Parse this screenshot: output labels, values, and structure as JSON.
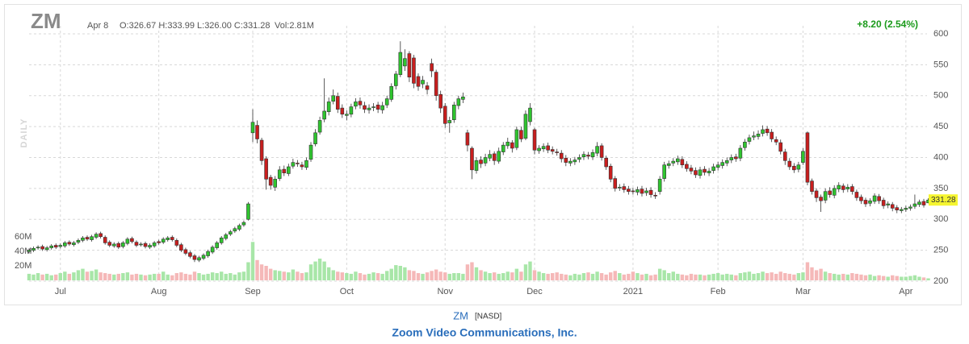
{
  "chart_data": {
    "type": "candlestick",
    "title": "ZM",
    "date": "Apr 8",
    "ohlc_text": "O:326.67 H:333.99 L:326.00 C:331.28",
    "volume_text": "Vol:2.81M",
    "change_text": "+8.20 (2.54%)",
    "period_label": "DAILY",
    "up_color": "#2fc42f",
    "down_color": "#c81e1e",
    "volume_up_color": "#a8e6a8",
    "volume_down_color": "#f5b8b8",
    "change_color": "#1a9a1a",
    "last_price_color": "#f5f530",
    "grid": true,
    "categories": [
      null,
      null,
      null,
      null,
      null,
      null,
      null,
      "Jul",
      null,
      null,
      null,
      null,
      null,
      null,
      null,
      null,
      null,
      null,
      null,
      null,
      null,
      null,
      null,
      null,
      null,
      null,
      null,
      null,
      null,
      "Aug",
      null,
      null,
      null,
      null,
      null,
      null,
      null,
      null,
      null,
      null,
      null,
      null,
      null,
      null,
      null,
      null,
      null,
      null,
      null,
      null,
      "Sep",
      null,
      null,
      null,
      null,
      null,
      null,
      null,
      null,
      null,
      null,
      null,
      null,
      null,
      null,
      null,
      null,
      null,
      null,
      null,
      null,
      "Oct",
      null,
      null,
      null,
      null,
      null,
      null,
      null,
      null,
      null,
      null,
      null,
      null,
      null,
      null,
      null,
      null,
      null,
      null,
      null,
      null,
      null,
      "Nov",
      null,
      null,
      null,
      null,
      null,
      null,
      null,
      null,
      null,
      null,
      null,
      null,
      null,
      null,
      null,
      null,
      null,
      null,
      null,
      "Dec",
      null,
      null,
      null,
      null,
      null,
      null,
      null,
      null,
      null,
      null,
      null,
      null,
      null,
      null,
      null,
      null,
      null,
      null,
      null,
      null,
      null,
      "2021",
      null,
      null,
      null,
      null,
      null,
      null,
      null,
      null,
      null,
      null,
      null,
      null,
      null,
      null,
      null,
      null,
      null,
      null,
      "Feb",
      null,
      null,
      null,
      null,
      null,
      null,
      null,
      null,
      null,
      null,
      null,
      null,
      null,
      null,
      null,
      null,
      null,
      null,
      "Mar",
      null,
      null,
      null,
      null,
      null,
      null,
      null,
      null,
      null,
      null,
      null,
      null,
      null,
      null,
      null,
      null,
      null,
      null,
      null,
      null,
      null,
      null,
      "Apr",
      null,
      null,
      null,
      null,
      null
    ],
    "open": [
      248,
      250,
      254,
      256,
      251,
      254,
      258,
      256,
      257,
      263,
      259,
      263,
      266,
      271,
      267,
      271,
      277,
      271,
      263,
      257,
      261,
      256,
      261,
      269,
      263,
      259,
      261,
      255,
      257,
      264,
      263,
      267,
      271,
      266,
      259,
      251,
      246,
      241,
      234,
      237,
      241,
      247,
      254,
      262,
      269,
      276,
      281,
      284,
      291,
      300,
      440,
      452,
      428,
      398,
      368,
      352,
      366,
      381,
      374,
      386,
      391,
      388,
      384,
      397,
      422,
      441,
      462,
      474,
      491,
      499,
      480,
      468,
      470,
      483,
      491,
      484,
      477,
      481,
      485,
      477,
      485,
      494,
      516,
      534,
      548,
      568,
      561,
      531,
      519,
      516,
      552,
      538,
      502,
      483,
      456,
      461,
      484,
      494,
      440,
      415,
      379,
      396,
      391,
      399,
      406,
      394,
      409,
      419,
      424,
      416,
      444,
      431,
      458,
      445,
      411,
      414,
      419,
      413,
      409,
      407,
      399,
      391,
      393,
      397,
      401,
      404,
      401,
      407,
      419,
      399,
      386,
      366,
      351,
      353,
      349,
      346,
      344,
      349,
      343,
      347,
      339,
      345,
      366,
      387,
      391,
      393,
      397,
      389,
      383,
      379,
      371,
      381,
      375,
      379,
      384,
      387,
      391,
      396,
      401,
      399,
      416,
      426,
      433,
      434,
      439,
      446,
      441,
      429,
      424,
      409,
      394,
      386,
      381,
      392,
      440,
      362,
      346,
      336,
      331,
      346,
      339,
      349,
      354,
      349,
      353,
      344,
      336,
      331,
      326,
      329,
      337,
      331,
      323,
      324,
      319,
      314,
      316,
      318,
      321,
      324,
      329,
      326.67
    ],
    "high": [
      253,
      256,
      258,
      259,
      257,
      260,
      261,
      261,
      265,
      266,
      265,
      269,
      273,
      274,
      275,
      279,
      280,
      274,
      266,
      263,
      264,
      265,
      271,
      272,
      266,
      263,
      264,
      261,
      265,
      267,
      271,
      273,
      274,
      269,
      262,
      254,
      249,
      244,
      241,
      245,
      251,
      258,
      265,
      273,
      278,
      283,
      288,
      293,
      298,
      328,
      478,
      460,
      432,
      402,
      372,
      370,
      386,
      387,
      390,
      398,
      396,
      393,
      400,
      425,
      446,
      466,
      528,
      497,
      510,
      505,
      486,
      476,
      487,
      496,
      497,
      490,
      486,
      488,
      490,
      490,
      500,
      520,
      540,
      588,
      575,
      572,
      566,
      536,
      532,
      522,
      560,
      542,
      508,
      488,
      466,
      490,
      500,
      505,
      445,
      418,
      400,
      402,
      406,
      412,
      410,
      416,
      425,
      432,
      428,
      450,
      450,
      476,
      488,
      448,
      420,
      423,
      424,
      418,
      414,
      412,
      404,
      399,
      401,
      405,
      410,
      409,
      413,
      425,
      423,
      403,
      390,
      370,
      357,
      358,
      354,
      351,
      353,
      354,
      351,
      352,
      344,
      370,
      393,
      395,
      399,
      403,
      402,
      394,
      388,
      384,
      385,
      386,
      383,
      390,
      393,
      397,
      400,
      405,
      406,
      420,
      430,
      437,
      442,
      444,
      452,
      451,
      446,
      434,
      429,
      414,
      399,
      391,
      393,
      415,
      442,
      366,
      350,
      340,
      350,
      352,
      355,
      360,
      358,
      357,
      357,
      348,
      340,
      335,
      334,
      342,
      341,
      335,
      329,
      328,
      323,
      320,
      322,
      324,
      340,
      332,
      333,
      333.99
    ],
    "low": [
      245,
      247,
      251,
      249,
      248,
      251,
      252,
      253,
      254,
      257,
      256,
      260,
      263,
      265,
      264,
      268,
      269,
      259,
      255,
      254,
      252,
      253,
      258,
      261,
      255,
      256,
      253,
      252,
      254,
      259,
      260,
      264,
      264,
      255,
      247,
      242,
      237,
      231,
      231,
      234,
      238,
      244,
      251,
      259,
      266,
      273,
      278,
      281,
      288,
      298,
      425,
      423,
      388,
      348,
      348,
      346,
      362,
      370,
      370,
      382,
      385,
      380,
      380,
      393,
      418,
      437,
      457,
      468,
      486,
      472,
      464,
      460,
      465,
      478,
      479,
      472,
      471,
      475,
      472,
      471,
      480,
      490,
      510,
      530,
      540,
      522,
      512,
      508,
      512,
      502,
      530,
      492,
      472,
      448,
      440,
      456,
      478,
      488,
      410,
      365,
      374,
      383,
      386,
      394,
      388,
      390,
      404,
      414,
      408,
      412,
      425,
      428,
      452,
      405,
      406,
      409,
      407,
      405,
      403,
      392,
      386,
      386,
      388,
      392,
      396,
      397,
      396,
      402,
      395,
      380,
      360,
      345,
      346,
      343,
      340,
      340,
      339,
      337,
      338,
      335,
      333,
      340,
      361,
      382,
      386,
      388,
      383,
      377,
      373,
      367,
      366,
      371,
      370,
      374,
      379,
      382,
      386,
      391,
      393,
      394,
      411,
      421,
      428,
      429,
      434,
      435,
      425,
      420,
      405,
      388,
      380,
      375,
      376,
      388,
      355,
      340,
      328,
      312,
      326,
      335,
      334,
      344,
      343,
      344,
      340,
      330,
      325,
      320,
      321,
      325,
      325,
      317,
      318,
      313,
      310,
      310,
      312,
      314,
      317,
      320,
      319,
      326.0
    ],
    "close": [
      250,
      253,
      255,
      252,
      254,
      257,
      255,
      258,
      262,
      260,
      262,
      266,
      270,
      268,
      272,
      276,
      272,
      262,
      258,
      260,
      255,
      262,
      268,
      264,
      258,
      260,
      256,
      258,
      262,
      262,
      268,
      270,
      267,
      258,
      250,
      245,
      240,
      235,
      238,
      242,
      248,
      255,
      262,
      270,
      275,
      280,
      285,
      290,
      295,
      325,
      457,
      430,
      395,
      365,
      355,
      365,
      380,
      375,
      385,
      392,
      390,
      385,
      395,
      420,
      440,
      460,
      475,
      490,
      500,
      478,
      470,
      470,
      482,
      490,
      485,
      478,
      480,
      482,
      478,
      484,
      495,
      515,
      535,
      570,
      560,
      530,
      520,
      515,
      525,
      510,
      540,
      500,
      480,
      455,
      460,
      485,
      495,
      498,
      420,
      380,
      395,
      390,
      400,
      405,
      395,
      410,
      420,
      425,
      415,
      445,
      430,
      470,
      480,
      412,
      415,
      418,
      412,
      410,
      408,
      398,
      392,
      394,
      396,
      400,
      405,
      402,
      408,
      418,
      400,
      385,
      365,
      350,
      352,
      348,
      345,
      345,
      348,
      342,
      346,
      340,
      338,
      365,
      388,
      390,
      394,
      398,
      388,
      382,
      378,
      372,
      380,
      376,
      378,
      385,
      388,
      392,
      395,
      400,
      398,
      415,
      425,
      432,
      435,
      438,
      445,
      440,
      430,
      425,
      410,
      395,
      385,
      380,
      388,
      410,
      360,
      345,
      335,
      330,
      345,
      340,
      350,
      355,
      348,
      352,
      345,
      335,
      330,
      325,
      330,
      338,
      330,
      322,
      325,
      318,
      315,
      316,
      318,
      320,
      325,
      328,
      323.08,
      331.28
    ],
    "volume": [
      9,
      8,
      10,
      8,
      9,
      7,
      8,
      10,
      12,
      9,
      11,
      14,
      16,
      12,
      13,
      15,
      11,
      10,
      9,
      8,
      9,
      10,
      11,
      8,
      9,
      8,
      7,
      8,
      9,
      9,
      12,
      8,
      7,
      10,
      11,
      9,
      8,
      12,
      10,
      8,
      9,
      11,
      10,
      12,
      9,
      10,
      8,
      11,
      12,
      25,
      53,
      28,
      22,
      20,
      16,
      14,
      13,
      12,
      11,
      15,
      12,
      10,
      11,
      22,
      26,
      30,
      26,
      18,
      14,
      12,
      11,
      10,
      9,
      12,
      10,
      8,
      9,
      11,
      10,
      9,
      13,
      16,
      21,
      20,
      18,
      14,
      13,
      10,
      9,
      11,
      13,
      15,
      12,
      11,
      9,
      10,
      10,
      9,
      22,
      25,
      18,
      14,
      12,
      10,
      11,
      9,
      10,
      12,
      11,
      16,
      12,
      22,
      26,
      14,
      12,
      10,
      9,
      10,
      11,
      9,
      8,
      7,
      9,
      8,
      10,
      11,
      9,
      12,
      10,
      8,
      11,
      13,
      10,
      8,
      9,
      12,
      10,
      8,
      9,
      7,
      8,
      16,
      14,
      10,
      12,
      9,
      8,
      7,
      9,
      8,
      8,
      7,
      8,
      9,
      10,
      8,
      9,
      8,
      7,
      10,
      11,
      12,
      9,
      10,
      12,
      10,
      11,
      9,
      12,
      10,
      9,
      8,
      10,
      11,
      25,
      18,
      14,
      16,
      12,
      10,
      9,
      8,
      9,
      8,
      10,
      9,
      8,
      7,
      8,
      6,
      7,
      6,
      5,
      7,
      6,
      5,
      5,
      6,
      7,
      5,
      4,
      2.81
    ],
    "ylim": [
      200,
      600
    ],
    "yticks": [
      200,
      250,
      300,
      350,
      400,
      450,
      500,
      550,
      600
    ],
    "y2lim": [
      0,
      100
    ],
    "y2ticks": [
      {
        "value": 20,
        "label": "20M"
      },
      {
        "value": 40,
        "label": "40M"
      },
      {
        "value": 60,
        "label": "60M"
      }
    ]
  },
  "footer": {
    "symbol": "ZM",
    "exchange": "[NASD]",
    "company": "Zoom Video Communications, Inc."
  }
}
